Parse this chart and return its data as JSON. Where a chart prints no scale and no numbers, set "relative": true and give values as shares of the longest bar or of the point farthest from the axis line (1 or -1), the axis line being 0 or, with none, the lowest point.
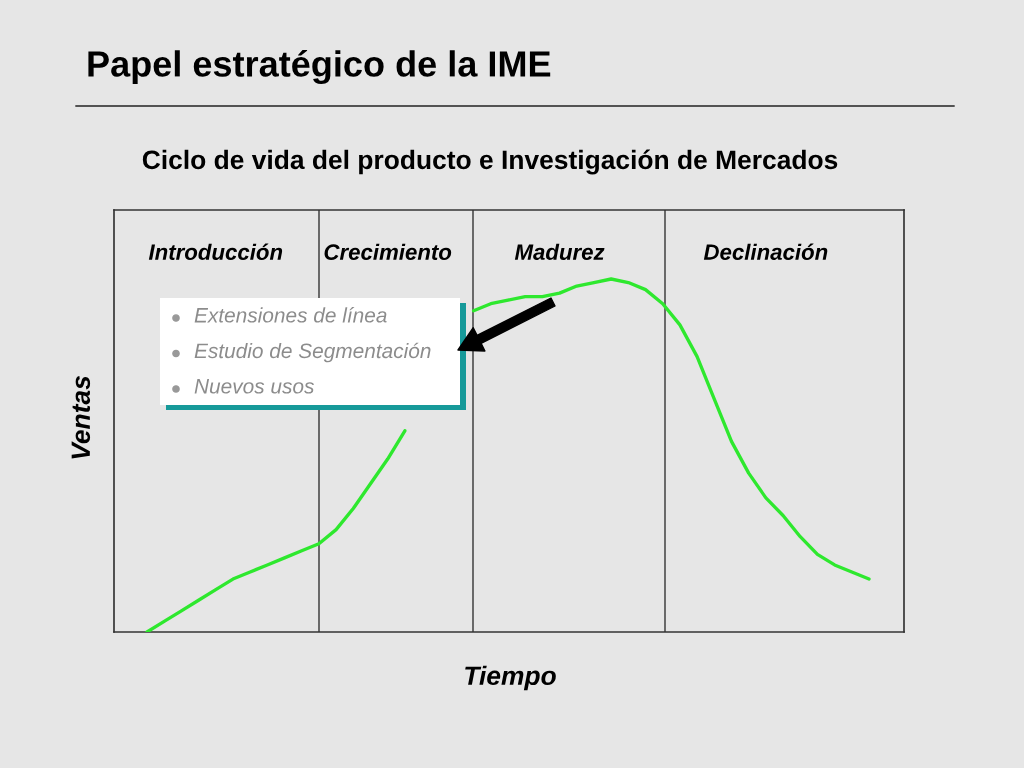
{
  "chart_data": {
    "type": "line",
    "title": "Papel estratégico de la IME",
    "subtitle": "Ciclo de vida del producto e Investigación de Mercados",
    "xlabel": "Tiempo",
    "ylabel": "Ventas",
    "categories": [
      null,
      null,
      null,
      null,
      "Introducción",
      null,
      null,
      null,
      null,
      null,
      null,
      null,
      null,
      null,
      "Crecimiento",
      null,
      null,
      null,
      null,
      null,
      null,
      null,
      null,
      null,
      "Madurez",
      null,
      null,
      null,
      null,
      null,
      null,
      null,
      null,
      null,
      null,
      null,
      "Declinación",
      null,
      null,
      null,
      null,
      null,
      null
    ],
    "series": [
      {
        "color": "#2ee82e",
        "values": [
          0,
          0.03,
          0.06,
          0.09,
          0.12,
          0.15,
          0.17,
          0.19,
          0.21,
          0.23,
          0.25,
          0.29,
          0.35,
          0.42,
          0.49,
          0.57,
          null,
          null,
          null,
          0.91,
          0.93,
          0.94,
          0.95,
          0.95,
          0.96,
          0.98,
          0.99,
          1,
          0.99,
          0.97,
          0.93,
          0.87,
          0.78,
          0.66,
          0.54,
          0.45,
          0.38,
          0.33,
          0.27,
          0.22,
          0.19,
          0.17,
          0.15
        ]
      }
    ],
    "relative": true,
    "grid": "x",
    "annotations": [
      "Extensiones de línea",
      "Estudio de Segmentación",
      "Nuevos usos"
    ],
    "line_style": "solid"
  }
}
